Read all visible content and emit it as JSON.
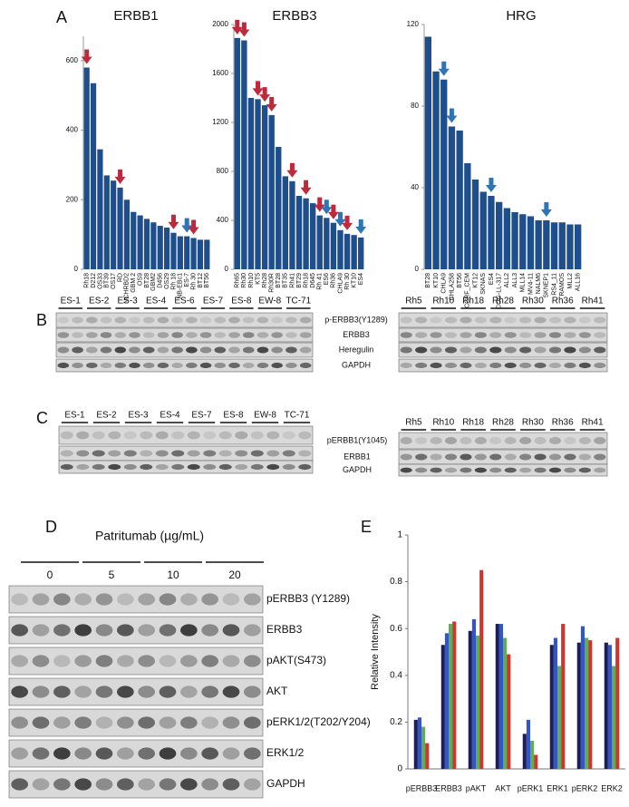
{
  "panel_labels": [
    "A",
    "B",
    "C",
    "D",
    "E"
  ],
  "chart_data": [
    {
      "type": "bar",
      "title": "ERBB1",
      "color": "#1f4e8c",
      "categories": [
        "Rh18",
        "D212",
        "OS33",
        "BT39",
        "OS17",
        "RD",
        "NCHRBD2",
        "GBM 2",
        "OS9",
        "BT28",
        "GBM2",
        "D456",
        "OS29",
        "Rh 18",
        "NB-EBc1",
        "ES-7",
        "Rh 30",
        "BT12",
        "BT56"
      ],
      "values": [
        580,
        535,
        345,
        270,
        255,
        235,
        200,
        165,
        155,
        145,
        135,
        125,
        120,
        105,
        95,
        95,
        90,
        85,
        85
      ],
      "highlight": [
        "#c0283c",
        null,
        null,
        null,
        null,
        "#c0283c",
        null,
        null,
        null,
        null,
        null,
        null,
        null,
        "#c0283c",
        null,
        "#2e75b6",
        "#c0283c",
        null,
        null
      ],
      "ylim": [
        0,
        670
      ],
      "yticks": [
        0,
        200,
        400,
        600
      ]
    },
    {
      "type": "bar",
      "title": "ERBB3",
      "color": "#1f4e8c",
      "categories": [
        "Rh65",
        "Rh30",
        "Rh10",
        "KT5",
        "Rh28",
        "Rh30R",
        "BT28",
        "BT35",
        "Rh41",
        "BT29",
        "Rh18",
        "D645",
        "Rh 41",
        "ES6",
        "Rh36",
        "CHLA9",
        "Rh 30",
        "KT10",
        "ES4"
      ],
      "values": [
        1890,
        1870,
        1400,
        1390,
        1340,
        1260,
        1000,
        760,
        720,
        600,
        580,
        540,
        440,
        420,
        380,
        320,
        290,
        280,
        260
      ],
      "highlight": [
        "#c0283c",
        "#c0283c",
        null,
        "#c0283c",
        "#c0283c",
        "#c0283c",
        null,
        null,
        "#c0283c",
        null,
        "#c0283c",
        null,
        "#c0283c",
        "#2e75b6",
        "#c0283c",
        "#2e75b6",
        "#c0283c",
        null,
        "#2e75b6"
      ],
      "ylim": [
        0,
        2000
      ],
      "yticks": [
        0,
        400,
        800,
        1200,
        1600,
        2000
      ]
    },
    {
      "type": "bar",
      "title": "HRG",
      "color": "#1f4e8c",
      "categories": [
        "BT28",
        "KT10",
        "CHLA9",
        "CHLA258",
        "BT56",
        "CCRF_CEM",
        "KT12",
        "SKNAS",
        "ES4",
        "COG-LL-317",
        "ALL2",
        "ALL3",
        "MLL14",
        "MV4-11",
        "NALM6",
        "SKNEP1",
        "RS4_11",
        "RAMOS",
        "MLL2",
        "ALL16"
      ],
      "values": [
        114,
        97,
        93,
        70,
        68,
        52,
        44,
        38,
        36,
        33,
        30,
        28,
        27,
        26,
        24,
        24,
        23,
        23,
        22,
        22
      ],
      "highlight": [
        null,
        null,
        "#2e75b6",
        "#2e75b6",
        null,
        null,
        null,
        null,
        "#2e75b6",
        null,
        null,
        null,
        null,
        null,
        null,
        "#2e75b6",
        null,
        null,
        null,
        null
      ],
      "ylim": [
        0,
        120
      ],
      "yticks": [
        0,
        40,
        80,
        120
      ]
    },
    {
      "type": "grouped_bar",
      "ylabel": "Relative Intensity",
      "categories": [
        "pERBB3",
        "ERBB3",
        "pAKT",
        "AKT",
        "pERK1",
        "ERK1",
        "pERK2",
        "ERK2"
      ],
      "series": [
        {
          "color": "#1a1f5c",
          "values": [
            0.21,
            0.53,
            0.59,
            0.62,
            0.15,
            0.53,
            0.54,
            0.54
          ]
        },
        {
          "color": "#3355cc",
          "values": [
            0.22,
            0.58,
            0.64,
            0.62,
            0.21,
            0.56,
            0.61,
            0.53
          ]
        },
        {
          "color": "#5fae55",
          "values": [
            0.18,
            0.62,
            0.57,
            0.56,
            0.12,
            0.44,
            0.56,
            0.44
          ]
        },
        {
          "color": "#d0342c",
          "values": [
            0.11,
            0.63,
            0.85,
            0.49,
            0.06,
            0.62,
            0.55,
            0.56
          ]
        }
      ],
      "ylim": [
        0,
        1
      ],
      "yticks": [
        0,
        0.2,
        0.4,
        0.6,
        0.8,
        1
      ]
    }
  ],
  "blot_B": {
    "left_lanes": [
      "ES-1",
      "ES-2",
      "ES-3",
      "ES-4",
      "ES-6",
      "ES-7",
      "ES-8",
      "EW-8",
      "TC-71"
    ],
    "right_lanes": [
      "Rh5",
      "Rh10",
      "Rh18",
      "Rh28",
      "Rh30",
      "Rh36",
      "Rh41"
    ],
    "rows": [
      "p-ERBB3(Y1289)",
      "ERBB3",
      "Heregulin",
      "GAPDH"
    ]
  },
  "blot_C": {
    "left_lanes": [
      "ES-1",
      "ES-2",
      "ES-3",
      "ES-4",
      "ES-7",
      "ES-8",
      "EW-8",
      "TC-71"
    ],
    "right_lanes": [
      "Rh5",
      "Rh10",
      "Rh18",
      "Rh28",
      "Rh30",
      "Rh36",
      "Rh41"
    ],
    "rows": [
      "pERBB1(Y1045)",
      "ERBB1",
      "GAPDH"
    ]
  },
  "blot_D": {
    "title": "Patritumab (µg/mL)",
    "doses": [
      "0",
      "5",
      "10",
      "20"
    ],
    "rows": [
      "pERBB3 (Y1289)",
      "ERBB3",
      "pAKT(S473)",
      "AKT",
      "pERK1/2(T202/Y204)",
      "ERK1/2",
      "GAPDH"
    ]
  }
}
